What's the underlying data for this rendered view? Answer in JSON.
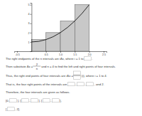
{
  "chart_data": {
    "type": "histogram",
    "bins": [
      0,
      0.5,
      1,
      1.5,
      2
    ],
    "values": [
      1.25,
      2,
      3.25,
      5
    ],
    "color": "#c8c8c8",
    "curve": {
      "x": [
        0,
        0.25,
        0.5,
        0.75,
        1,
        1.25,
        1.5,
        1.75,
        2
      ],
      "values": [
        1,
        1.06,
        1.25,
        1.56,
        2,
        2.56,
        3.25,
        4.06,
        5
      ],
      "color": "#000000"
    },
    "xlim": [
      -0.6,
      2.6
    ],
    "xticks": [
      -0.5,
      0.5,
      {
        "value": 1,
        "label": "1.0"
      },
      1.5,
      {
        "value": 2,
        "label": "2.0"
      },
      2.5
    ],
    "ylim": [
      0,
      5.2
    ],
    "yticks": [
      1,
      2,
      3,
      4,
      5
    ]
  },
  "document": {
    "lines": [
      [
        "The right endpoints of the n intervals are iΔx, where i = 1 to ",
        null,
        "."
      ],
      [
        "Then substitute Δx = ",
        {
          "num": "2",
          "den": "n"
        },
        " and n = 4 to find the left and right points of four intervals."
      ],
      [
        "Thus, the right end points of four intervals are iΔx = ",
        {
          "num": null,
          "den": null
        },
        "(i), where i = 1 to 4."
      ],
      [
        "That is, the four right points of the intervals are ",
        null,
        ", ",
        null,
        ", ",
        null,
        ", and 2."
      ],
      [
        "Therefore, the four intervals are given as follows."
      ],
      [
        "[0, ",
        null,
        "], [",
        null,
        ", ",
        null,
        "], [",
        null,
        ", ",
        null,
        "],"
      ],
      [
        "[",
        null,
        ", 2]."
      ]
    ]
  }
}
